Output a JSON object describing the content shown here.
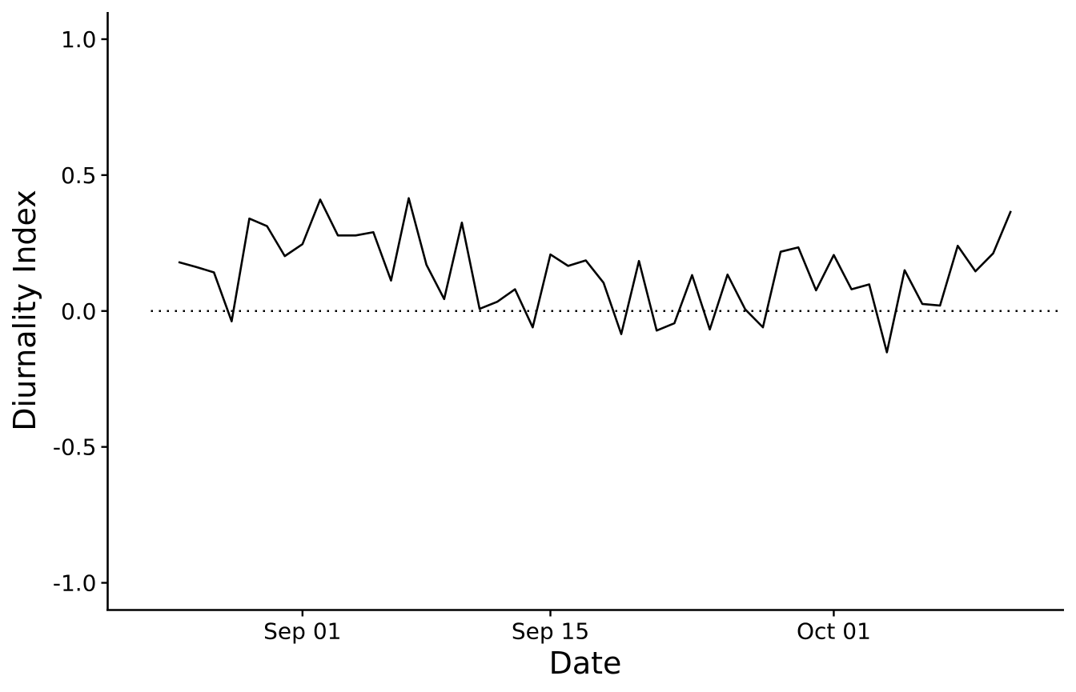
{
  "chart_data": {
    "type": "line",
    "xlabel": "Date",
    "ylabel": "Diurnality Index",
    "ylim": [
      -1.1,
      1.1
    ],
    "y_ticks": [
      -1.0,
      -0.5,
      0.0,
      0.5,
      1.0
    ],
    "y_tick_labels": [
      "-1.0",
      "-0.5",
      "0.0",
      "0.5",
      "1.0"
    ],
    "x_range": [
      "2022-08-21",
      "2022-10-14"
    ],
    "x_ticks": [
      {
        "date": "2022-09-01",
        "label": "Sep 01"
      },
      {
        "date": "2022-09-15",
        "label": "Sep 15"
      },
      {
        "date": "2022-10-01",
        "label": "Oct 01"
      }
    ],
    "grid": false,
    "reference_line": {
      "y": 0.0,
      "style": "dotted"
    },
    "line_color": "#000000",
    "series": [
      {
        "x": [
          "2022-08-25",
          "2022-08-26",
          "2022-08-27",
          "2022-08-28",
          "2022-08-29",
          "2022-08-30",
          "2022-08-31",
          "2022-09-01",
          "2022-09-02",
          "2022-09-03",
          "2022-09-04",
          "2022-09-05",
          "2022-09-06",
          "2022-09-07",
          "2022-09-08",
          "2022-09-09",
          "2022-09-10",
          "2022-09-11",
          "2022-09-12",
          "2022-09-13",
          "2022-09-14",
          "2022-09-15",
          "2022-09-16",
          "2022-09-17",
          "2022-09-18",
          "2022-09-19",
          "2022-09-20",
          "2022-09-21",
          "2022-09-22",
          "2022-09-23",
          "2022-09-24",
          "2022-09-25",
          "2022-09-26",
          "2022-09-27",
          "2022-09-28",
          "2022-09-29",
          "2022-09-30",
          "2022-10-01",
          "2022-10-02",
          "2022-10-03",
          "2022-10-04",
          "2022-10-05",
          "2022-10-06",
          "2022-10-07",
          "2022-10-08",
          "2022-10-09",
          "2022-10-10",
          "2022-10-11"
        ],
        "values": [
          0.18,
          0.162,
          0.142,
          -0.038,
          0.34,
          0.312,
          0.202,
          0.246,
          0.41,
          0.278,
          0.278,
          0.29,
          0.112,
          0.415,
          0.17,
          0.044,
          0.325,
          0.008,
          0.034,
          0.08,
          -0.06,
          0.208,
          0.166,
          0.186,
          0.104,
          -0.085,
          0.184,
          -0.072,
          -0.045,
          0.132,
          -0.068,
          0.134,
          0.006,
          -0.06,
          0.218,
          0.234,
          0.076,
          0.206,
          0.08,
          0.098,
          -0.152,
          0.15,
          0.026,
          0.02,
          0.24,
          0.146,
          0.212,
          0.368
        ]
      }
    ]
  }
}
